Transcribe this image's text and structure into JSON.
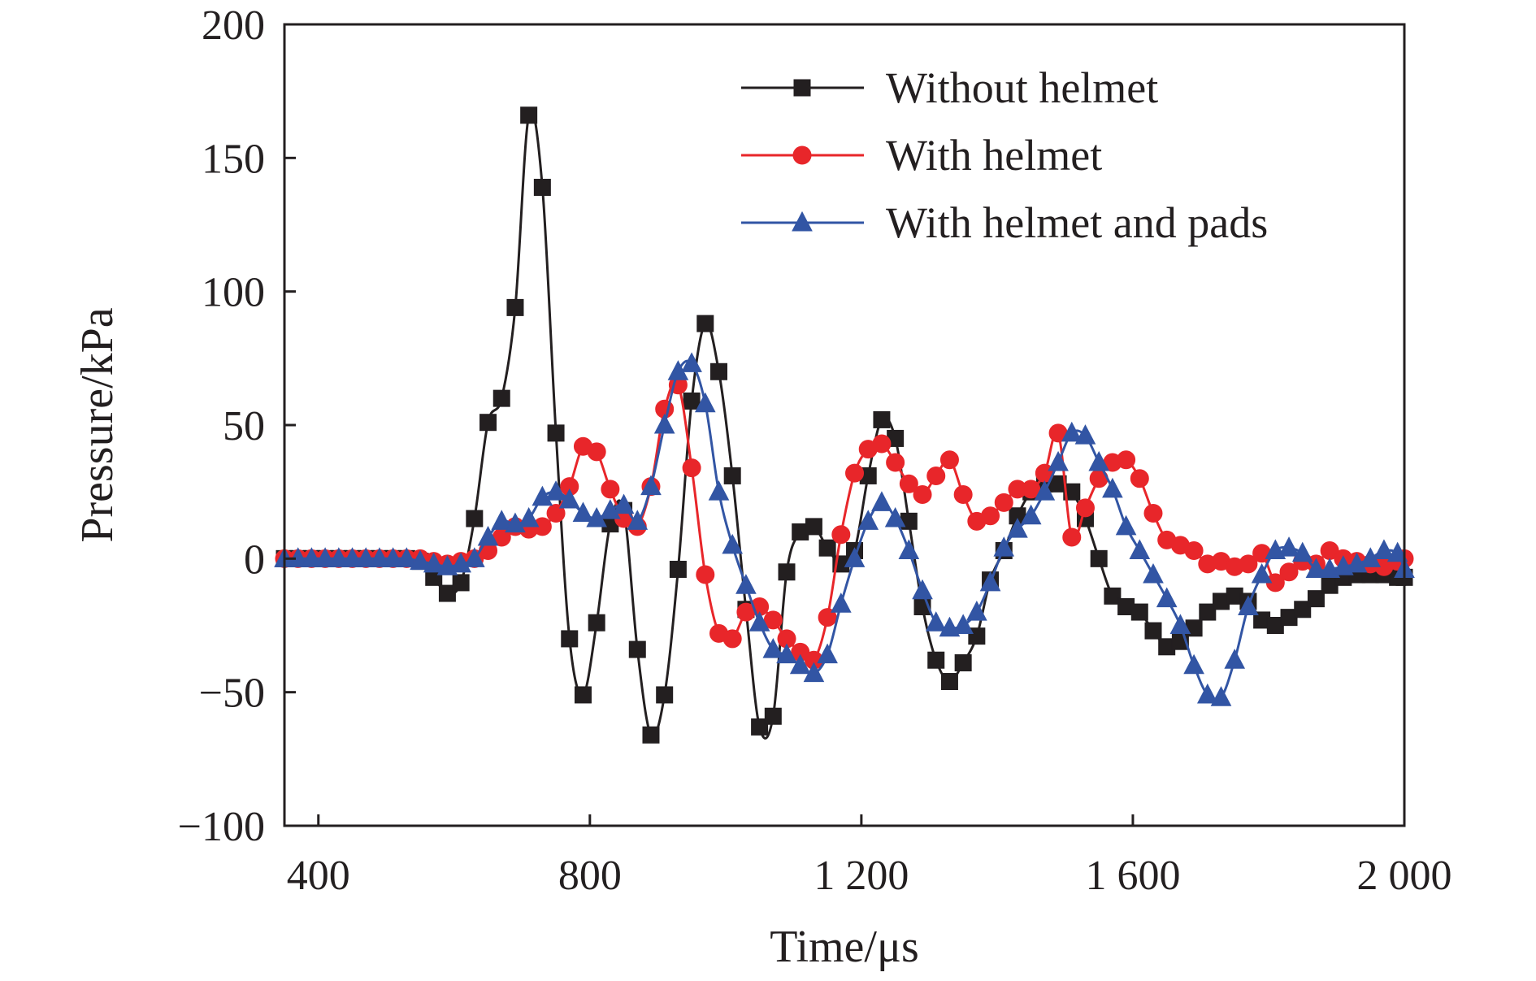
{
  "chart_data": {
    "type": "line",
    "title": "",
    "xlabel": "Time/μs",
    "ylabel": "Pressure/kPa",
    "xlim": [
      350,
      2000
    ],
    "ylim": [
      -100,
      200
    ],
    "x_ticks": [
      400,
      800,
      1200,
      1600,
      2000
    ],
    "x_tick_labels": [
      "400",
      "800",
      "1 200",
      "1 600",
      "2 000"
    ],
    "y_ticks": [
      -100,
      -50,
      0,
      50,
      100,
      150,
      200
    ],
    "y_tick_labels": [
      "−100",
      "−50",
      "0",
      "50",
      "100",
      "150",
      "200"
    ],
    "grid": false,
    "legend_position": "top-right",
    "series": [
      {
        "name": "Without helmet",
        "color": "#231f20",
        "marker": "square",
        "x": [
          350,
          370,
          390,
          410,
          430,
          450,
          470,
          490,
          510,
          530,
          550,
          570,
          590,
          610,
          630,
          650,
          670,
          690,
          710,
          730,
          750,
          770,
          790,
          810,
          830,
          850,
          870,
          890,
          910,
          930,
          950,
          970,
          990,
          1010,
          1030,
          1050,
          1070,
          1090,
          1110,
          1130,
          1150,
          1170,
          1190,
          1210,
          1230,
          1250,
          1270,
          1290,
          1310,
          1330,
          1350,
          1370,
          1390,
          1410,
          1430,
          1450,
          1470,
          1490,
          1510,
          1530,
          1550,
          1570,
          1590,
          1610,
          1630,
          1650,
          1670,
          1690,
          1710,
          1730,
          1750,
          1770,
          1790,
          1810,
          1830,
          1850,
          1870,
          1890,
          1910,
          1930,
          1950,
          1970,
          1990,
          2000
        ],
        "y": [
          0,
          0,
          0,
          0,
          0,
          0,
          0,
          0,
          0,
          0,
          -1,
          -7,
          -13,
          -9,
          15,
          51,
          60,
          94,
          166,
          139,
          47,
          -30,
          -51,
          -24,
          13,
          18,
          -34,
          -66,
          -51,
          -4,
          59,
          88,
          70,
          31,
          -19,
          -63,
          -59,
          -5,
          10,
          12,
          4,
          -2,
          3,
          31,
          52,
          45,
          14,
          -18,
          -38,
          -46,
          -39,
          -29,
          -8,
          3,
          16,
          25,
          28,
          28,
          25,
          15,
          0,
          -14,
          -18,
          -20,
          -27,
          -33,
          -31,
          -26,
          -20,
          -16,
          -14,
          -16,
          -23,
          -25,
          -22,
          -19,
          -15,
          -10,
          -7,
          -6,
          -6,
          -6,
          -7,
          -7
        ]
      },
      {
        "name": "With helmet",
        "color": "#e8262a",
        "marker": "circle",
        "x": [
          350,
          370,
          390,
          410,
          430,
          450,
          470,
          490,
          510,
          530,
          550,
          570,
          590,
          610,
          630,
          650,
          670,
          690,
          710,
          730,
          750,
          770,
          790,
          810,
          830,
          850,
          870,
          890,
          910,
          930,
          950,
          970,
          990,
          1010,
          1030,
          1050,
          1070,
          1090,
          1110,
          1130,
          1150,
          1170,
          1190,
          1210,
          1230,
          1250,
          1270,
          1290,
          1310,
          1330,
          1350,
          1370,
          1390,
          1410,
          1430,
          1450,
          1470,
          1490,
          1510,
          1530,
          1550,
          1570,
          1590,
          1610,
          1630,
          1650,
          1670,
          1690,
          1710,
          1730,
          1750,
          1770,
          1790,
          1810,
          1830,
          1850,
          1870,
          1890,
          1910,
          1930,
          1950,
          1970,
          1990,
          2000
        ],
        "y": [
          0,
          0,
          0,
          0,
          0,
          0,
          0,
          0,
          0,
          0,
          0,
          -1,
          -2,
          -1,
          0,
          3,
          8,
          12,
          11,
          12,
          17,
          27,
          42,
          40,
          26,
          15,
          12,
          27,
          56,
          65,
          34,
          -6,
          -28,
          -30,
          -20,
          -18,
          -23,
          -30,
          -35,
          -38,
          -22,
          9,
          32,
          41,
          43,
          36,
          28,
          24,
          31,
          37,
          24,
          14,
          16,
          21,
          26,
          26,
          32,
          47,
          8,
          19,
          30,
          36,
          37,
          30,
          17,
          7,
          5,
          3,
          -2,
          -1,
          -3,
          -2,
          2,
          -9,
          -5,
          -1,
          -2,
          3,
          0,
          -1,
          -2,
          -3,
          -1,
          0
        ]
      },
      {
        "name": "With helmet and pads",
        "color": "#3255a4",
        "marker": "triangle",
        "x": [
          350,
          370,
          390,
          410,
          430,
          450,
          470,
          490,
          510,
          530,
          550,
          570,
          590,
          610,
          630,
          650,
          670,
          690,
          710,
          730,
          750,
          770,
          790,
          810,
          830,
          850,
          870,
          890,
          910,
          930,
          950,
          970,
          990,
          1010,
          1030,
          1050,
          1070,
          1090,
          1110,
          1130,
          1150,
          1170,
          1190,
          1210,
          1230,
          1250,
          1270,
          1290,
          1310,
          1330,
          1350,
          1370,
          1390,
          1410,
          1430,
          1450,
          1470,
          1490,
          1510,
          1530,
          1550,
          1570,
          1590,
          1610,
          1630,
          1650,
          1670,
          1690,
          1710,
          1730,
          1750,
          1770,
          1790,
          1810,
          1830,
          1850,
          1870,
          1890,
          1910,
          1930,
          1950,
          1970,
          1990,
          2000
        ],
        "y": [
          0,
          0,
          0,
          0,
          0,
          0,
          0,
          0,
          0,
          0,
          -1,
          -2,
          -3,
          -2,
          0,
          8,
          14,
          13,
          15,
          23,
          25,
          22,
          17,
          15,
          18,
          20,
          14,
          27,
          50,
          70,
          73,
          58,
          25,
          5,
          -10,
          -24,
          -34,
          -36,
          -40,
          -43,
          -36,
          -17,
          0,
          14,
          21,
          15,
          3,
          -12,
          -24,
          -26,
          -25,
          -20,
          -9,
          4,
          11,
          16,
          25,
          36,
          47,
          46,
          36,
          26,
          12,
          3,
          -6,
          -15,
          -25,
          -40,
          -51,
          -52,
          -38,
          -18,
          -6,
          3,
          4,
          2,
          -4,
          -4,
          -3,
          -2,
          0,
          3,
          2,
          -4
        ]
      }
    ]
  }
}
